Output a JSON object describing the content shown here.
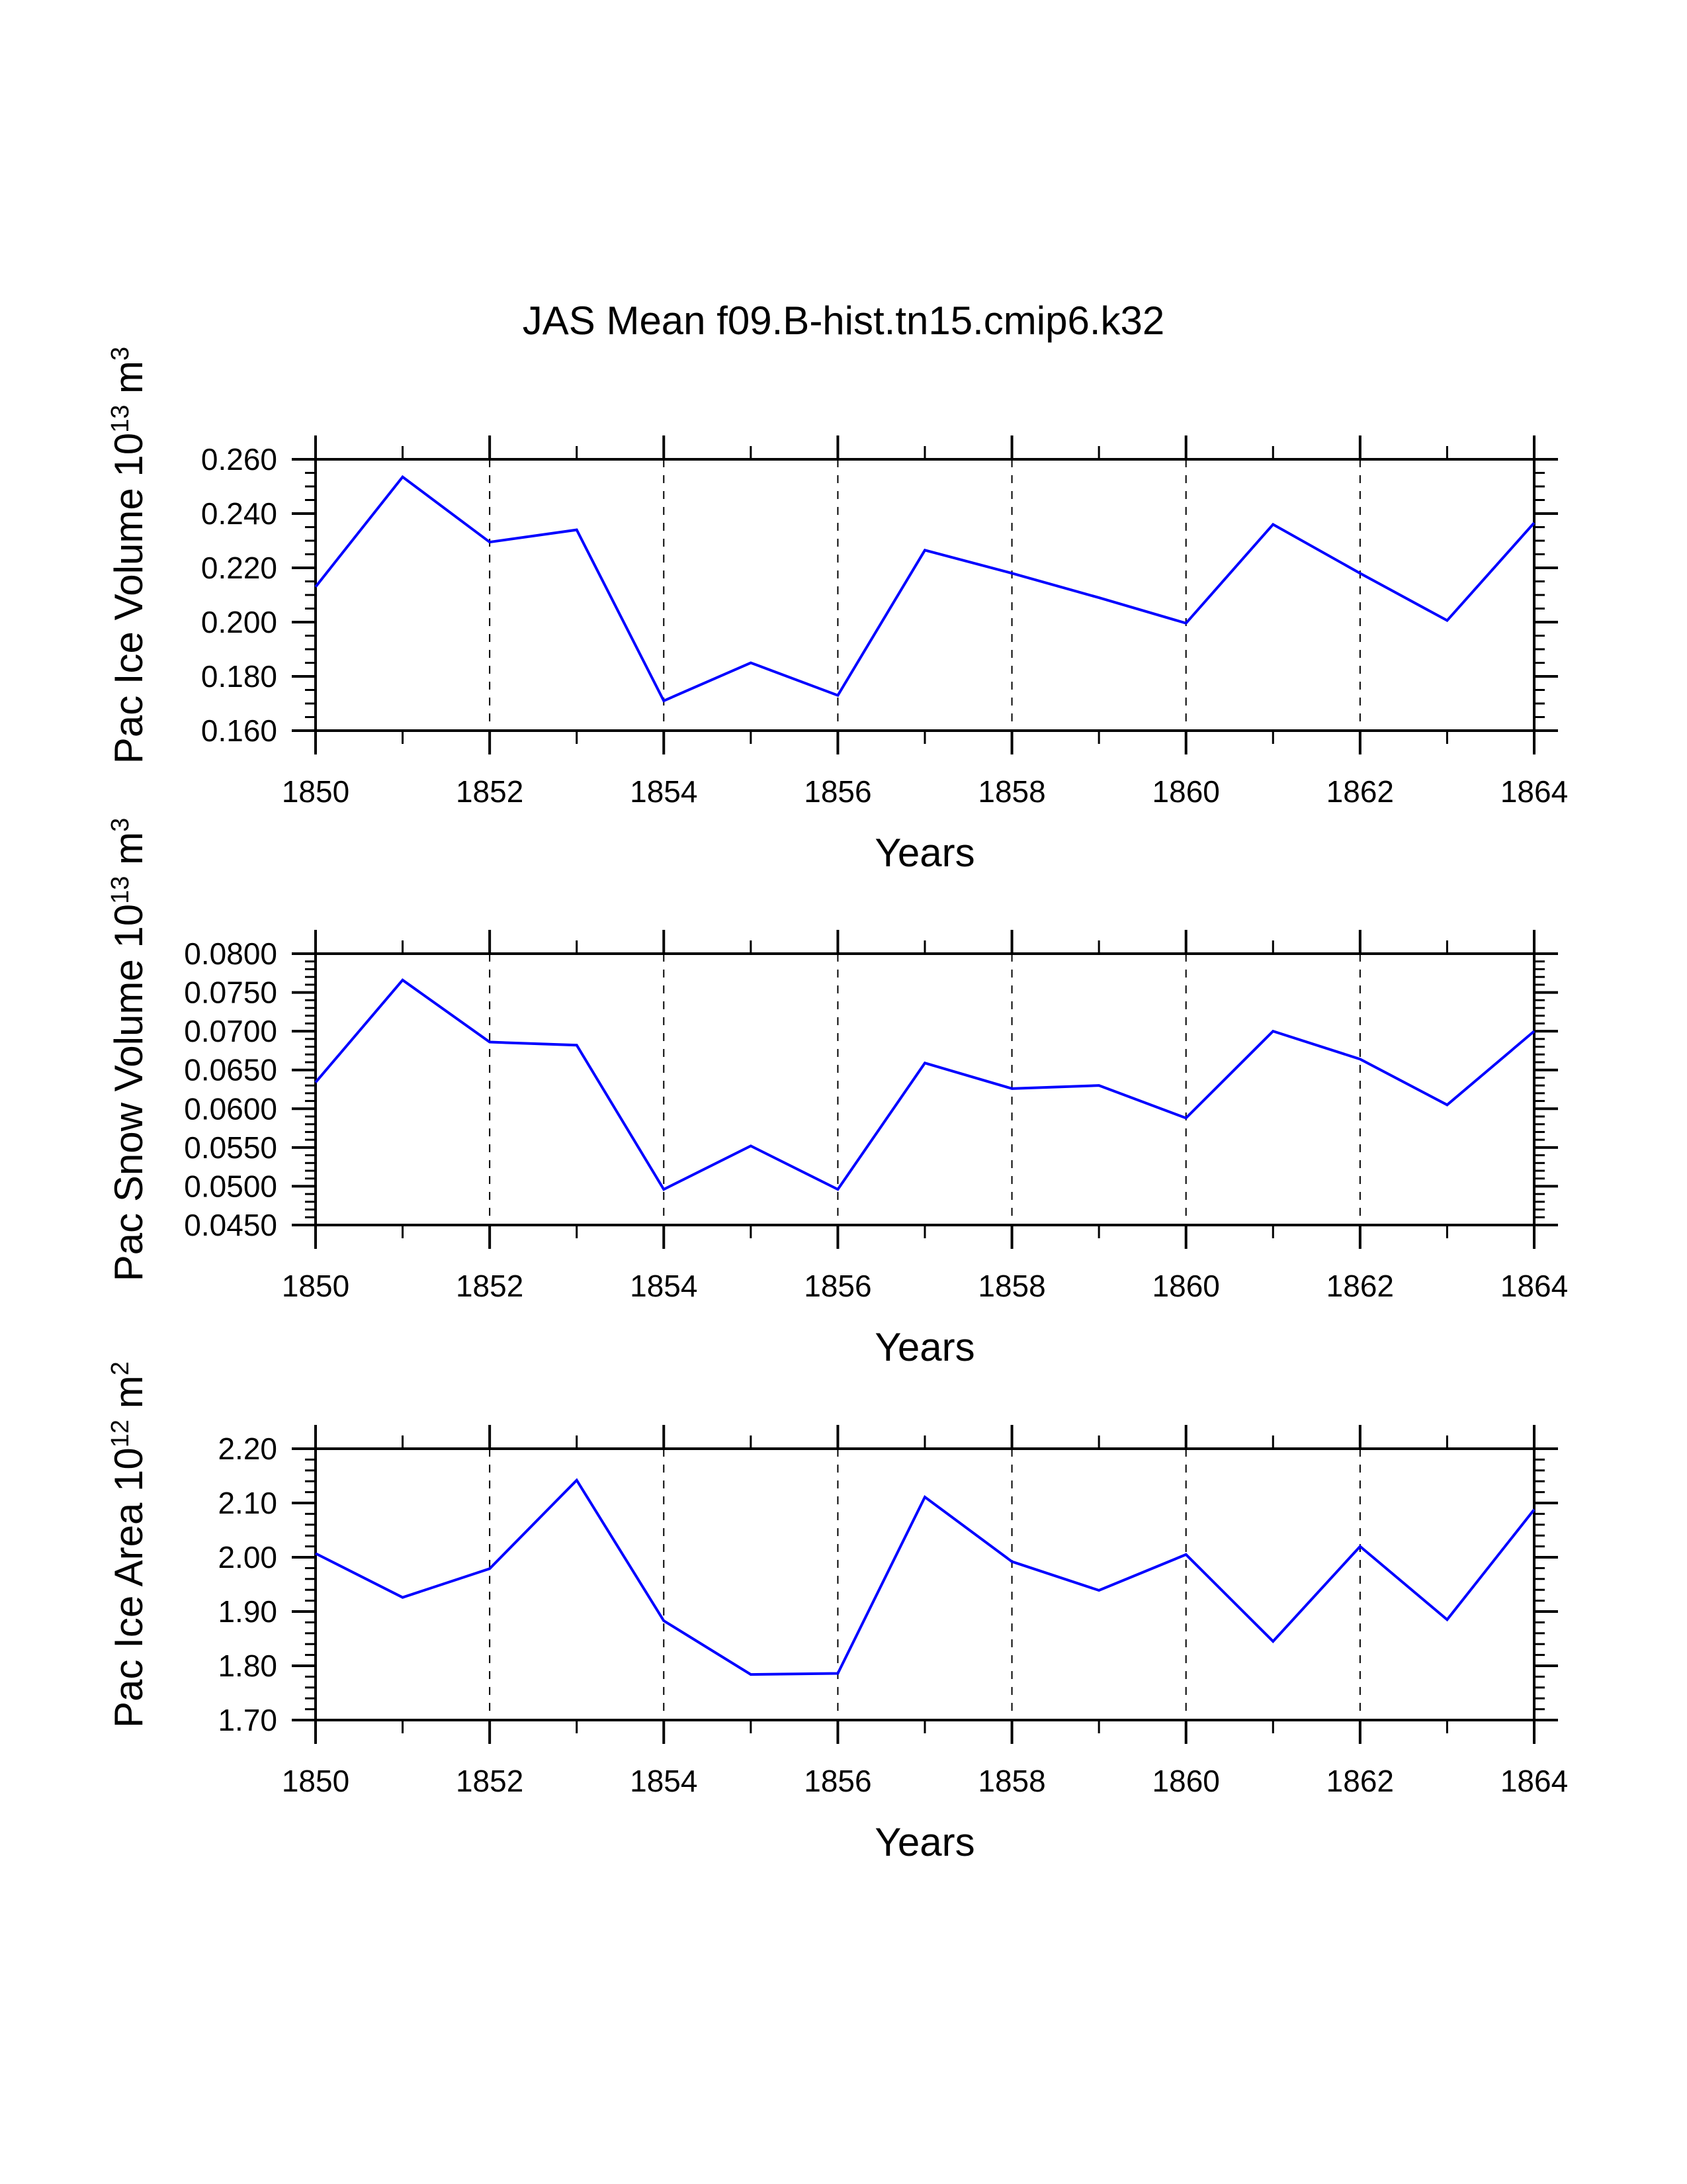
{
  "title": "JAS Mean f09.B-hist.tn15.cmip6.k32",
  "line_color": "#0000ff",
  "chart_data": [
    {
      "type": "line",
      "xlabel": "Years",
      "ylabel_parts": [
        "Pac Ice Volume 10",
        "13",
        " m",
        "3"
      ],
      "x": [
        1850,
        1851,
        1852,
        1853,
        1854,
        1855,
        1856,
        1857,
        1858,
        1859,
        1860,
        1861,
        1862,
        1863,
        1864
      ],
      "values": [
        0.213,
        0.2535,
        0.2295,
        0.234,
        0.171,
        0.185,
        0.173,
        0.2265,
        0.218,
        0.209,
        0.1996,
        0.236,
        0.218,
        0.2006,
        0.2366
      ],
      "xlim": [
        1850,
        1864
      ],
      "ylim": [
        0.16,
        0.26
      ],
      "xticks": [
        "1850",
        "1852",
        "1854",
        "1856",
        "1858",
        "1860",
        "1862",
        "1864"
      ],
      "yticks": [
        "0.160",
        "0.180",
        "0.200",
        "0.220",
        "0.240",
        "0.260"
      ],
      "ymajor": 0.02,
      "yminor": 0.005,
      "grid": "dashed vertical at major x ticks"
    },
    {
      "type": "line",
      "xlabel": "Years",
      "ylabel_parts": [
        "Pac Snow Volume 10",
        "13",
        " m",
        "3"
      ],
      "x": [
        1850,
        1851,
        1852,
        1853,
        1854,
        1855,
        1856,
        1857,
        1858,
        1859,
        1860,
        1861,
        1862,
        1863,
        1864
      ],
      "values": [
        0.0634,
        0.0766,
        0.0686,
        0.0682,
        0.0496,
        0.0552,
        0.0496,
        0.0659,
        0.0626,
        0.063,
        0.0588,
        0.07,
        0.0664,
        0.0605,
        0.07
      ],
      "xlim": [
        1850,
        1864
      ],
      "ylim": [
        0.045,
        0.08
      ],
      "xticks": [
        "1850",
        "1852",
        "1854",
        "1856",
        "1858",
        "1860",
        "1862",
        "1864"
      ],
      "yticks": [
        "0.0450",
        "0.0500",
        "0.0550",
        "0.0600",
        "0.0650",
        "0.0700",
        "0.0750",
        "0.0800"
      ],
      "ymajor": 0.005,
      "yminor": 0.001,
      "grid": "dashed vertical at major x ticks"
    },
    {
      "type": "line",
      "xlabel": "Years",
      "ylabel_parts": [
        "Pac Ice Area 10",
        "12",
        " m",
        "2"
      ],
      "x": [
        1850,
        1851,
        1852,
        1853,
        1854,
        1855,
        1856,
        1857,
        1858,
        1859,
        1860,
        1861,
        1862,
        1863,
        1864
      ],
      "values": [
        2.007,
        1.926,
        1.979,
        2.142,
        1.883,
        1.784,
        1.786,
        2.111,
        1.992,
        1.939,
        2.005,
        1.845,
        2.02,
        1.885,
        2.088
      ],
      "xlim": [
        1850,
        1864
      ],
      "ylim": [
        1.7,
        2.2
      ],
      "xticks": [
        "1850",
        "1852",
        "1854",
        "1856",
        "1858",
        "1860",
        "1862",
        "1864"
      ],
      "yticks": [
        "1.70",
        "1.80",
        "1.90",
        "2.00",
        "2.10",
        "2.20"
      ],
      "ymajor": 0.1,
      "yminor": 0.02,
      "grid": "dashed vertical at major x ticks"
    }
  ]
}
